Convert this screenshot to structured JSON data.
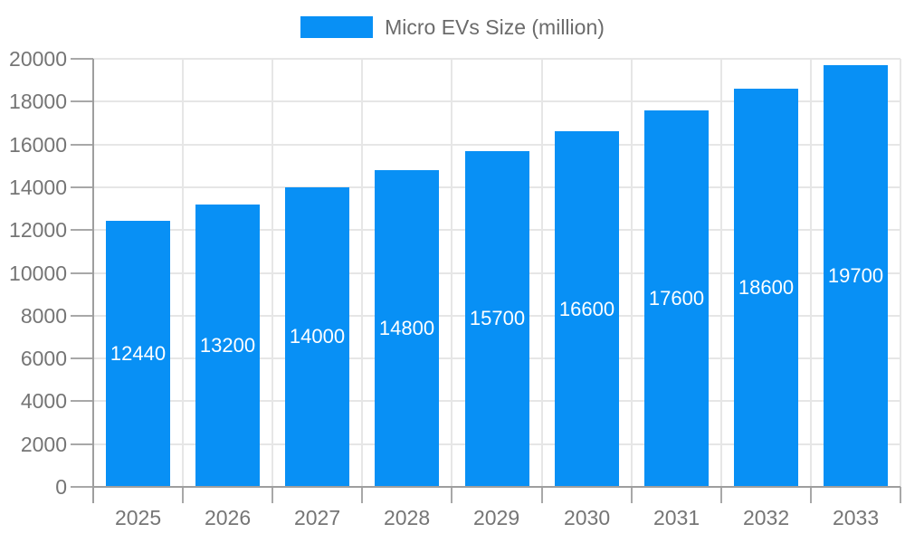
{
  "chart_data": {
    "type": "bar",
    "title": "Micro EVs Size (million)",
    "categories": [
      "2025",
      "2026",
      "2027",
      "2028",
      "2029",
      "2030",
      "2031",
      "2032",
      "2033"
    ],
    "series": [
      {
        "name": "Micro EVs Size (million)",
        "values": [
          12440,
          13200,
          14000,
          14800,
          15700,
          16600,
          17600,
          18600,
          19700
        ]
      }
    ],
    "xlabel": "",
    "ylabel": "",
    "ylim": [
      0,
      20000
    ],
    "ytick_step": 2000,
    "ytick_labels": [
      "0",
      "2000",
      "4000",
      "6000",
      "8000",
      "10000",
      "12000",
      "14000",
      "16000",
      "18000",
      "20000"
    ],
    "grid": true,
    "legend_position": "top-center",
    "data_labels": "inside-center",
    "colors": {
      "bar": "#0890f5",
      "bar_label_text": "#ffffff",
      "axis_text": "#757575",
      "legend_text": "#6b6b6b",
      "grid_line": "#e6e6e6",
      "axis_line": "#9e9e9e",
      "tick": "#a8a8a8",
      "background": "#ffffff"
    }
  }
}
